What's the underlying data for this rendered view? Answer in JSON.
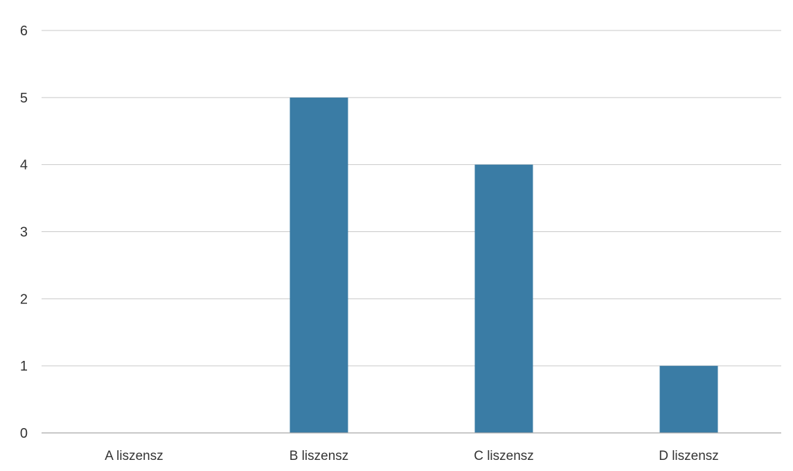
{
  "chart_data": {
    "type": "bar",
    "title": "",
    "xlabel": "",
    "ylabel": "",
    "categories": [
      "A liszensz",
      "B liszensz",
      "C liszensz",
      "D liszensz"
    ],
    "values": [
      0,
      5,
      4,
      1
    ],
    "ylim": [
      0,
      6
    ],
    "yticks": [
      "0",
      "1",
      "2",
      "3",
      "4",
      "5",
      "6"
    ],
    "grid": true,
    "legend": "none",
    "colors": {
      "bar": "#3a7ca5",
      "grid": "#c8c8c8",
      "axis": "#a6a6a6"
    }
  }
}
